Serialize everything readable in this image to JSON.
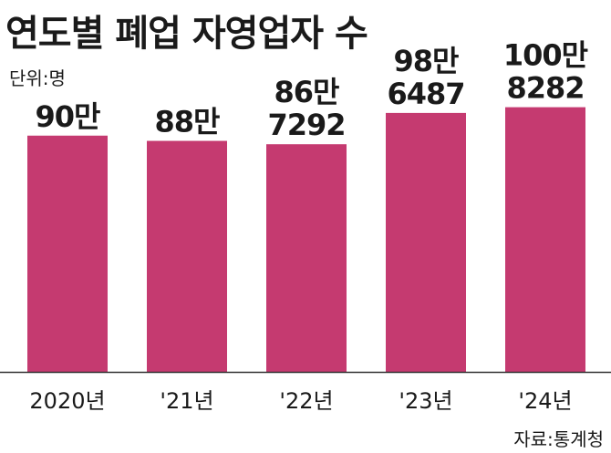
{
  "title": "연도별 폐업 자영업자 수",
  "unit": "단위:명",
  "source": "자료:통계청",
  "colors": {
    "bar": "#c53a70",
    "axis": "#333333"
  },
  "chart_data": {
    "type": "bar",
    "categories": [
      "2020년",
      "'21년",
      "'22년",
      "'23년",
      "'24년"
    ],
    "values": [
      900000,
      880000,
      867292,
      986487,
      1008282
    ],
    "data_labels": [
      [
        "90만"
      ],
      [
        "88만"
      ],
      [
        "86만",
        "7292"
      ],
      [
        "98만",
        "6487"
      ],
      [
        "100만",
        "8282"
      ]
    ],
    "title": "연도별 폐업 자영업자 수",
    "xlabel": "",
    "ylabel": "",
    "ylim": [
      0,
      1250000
    ],
    "grid": false,
    "legend": "none"
  }
}
